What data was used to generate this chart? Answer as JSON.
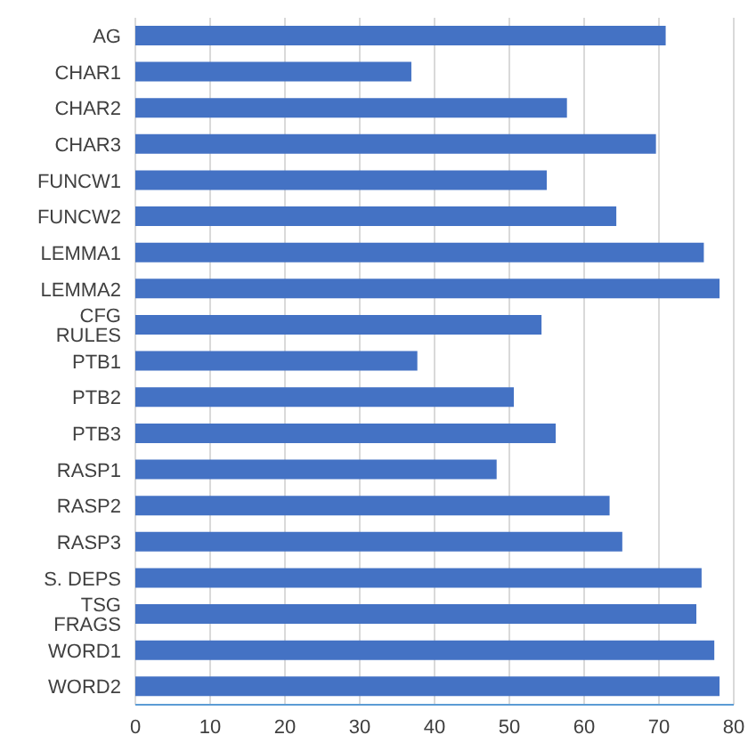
{
  "chart_data": {
    "type": "bar",
    "orientation": "horizontal",
    "categories": [
      "AG",
      "CHAR1",
      "CHAR2",
      "CHAR3",
      "FUNCW1",
      "FUNCW2",
      "LEMMA1",
      "LEMMA2",
      "CFG RULES",
      "PTB1",
      "PTB2",
      "PTB3",
      "RASP1",
      "RASP2",
      "RASP3",
      "S. DEPS",
      "TSG FRAGS",
      "WORD1",
      "WORD2"
    ],
    "values": [
      70.9,
      36.9,
      57.7,
      69.6,
      55.0,
      64.3,
      76.0,
      78.1,
      54.3,
      37.7,
      50.6,
      56.2,
      48.3,
      63.4,
      65.1,
      75.7,
      75.0,
      77.4,
      78.1
    ],
    "color": "#4472c4",
    "xlim": [
      0,
      80
    ],
    "xticks": [
      0,
      10,
      20,
      30,
      40,
      50,
      60,
      70,
      80
    ],
    "grid": "x"
  }
}
